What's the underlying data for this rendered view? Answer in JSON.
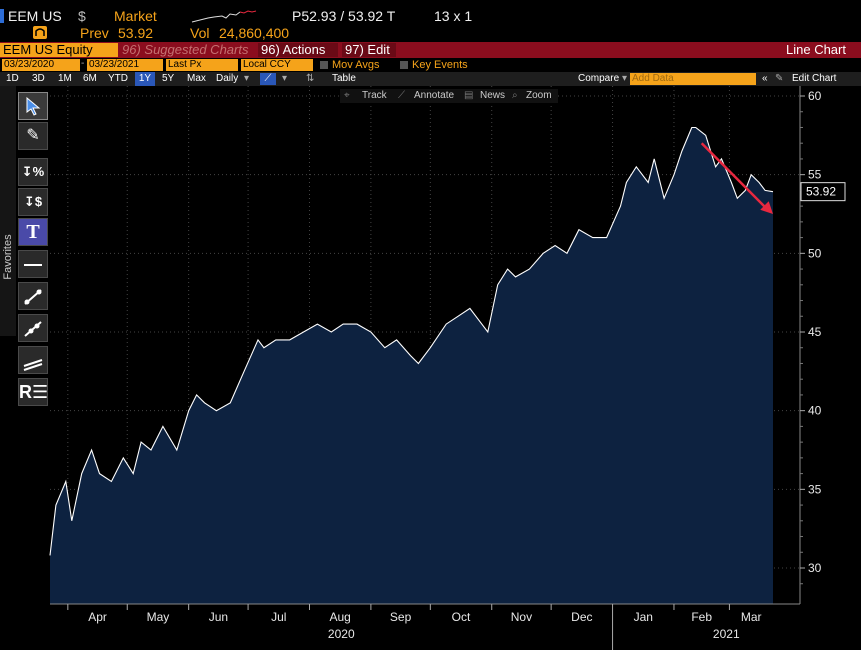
{
  "header": {
    "ticker": "EEM US",
    "currency_symbol": "$",
    "market_label": "Market",
    "price_label": "P52.93 / 53.92 T",
    "size_label": "13 x 1",
    "prev_label": "Prev",
    "prev_value": "53.92",
    "vol_label": "Vol",
    "vol_value": "24,860,400"
  },
  "function_bar": {
    "security": "EEM US Equity",
    "suggested": "96) Suggested Charts",
    "actions": "96) Actions",
    "edit": "97) Edit",
    "title": "Line Chart"
  },
  "inputs": {
    "start_date": "03/23/2020",
    "end_date": "03/23/2021",
    "field": "Last Px",
    "currency": "Local CCY",
    "mov_avgs": "Mov Avgs",
    "key_events": "Key Events"
  },
  "range_bar": {
    "ranges": [
      "1D",
      "3D",
      "1M",
      "6M",
      "YTD",
      "1Y",
      "5Y",
      "Max"
    ],
    "active_range": "1Y",
    "frequency": "Daily",
    "table": "Table",
    "compare": "Compare",
    "add_data_placeholder": "Add Data",
    "edit_chart": "Edit Chart"
  },
  "chart_tools": [
    "Track",
    "Annotate",
    "News",
    "Zoom"
  ],
  "sidebar": {
    "favorites": "Favorites"
  },
  "colors": {
    "area_fill": "#0d2240",
    "line": "#ffffff",
    "accent": "#f5a31a",
    "arrow": "#e8283f",
    "red_bar": "#8b0d1e"
  },
  "chart_data": {
    "type": "area",
    "ylim": [
      28,
      61
    ],
    "yticks": [
      30,
      35,
      40,
      45,
      50,
      55,
      60
    ],
    "last_value": "53.92",
    "x_month_labels": [
      "Apr",
      "May",
      "Jun",
      "Jul",
      "Aug",
      "Sep",
      "Oct",
      "Nov",
      "Dec",
      "Jan",
      "Feb",
      "Mar"
    ],
    "x_year_labels": [
      "2020",
      "2021"
    ],
    "trend_arrow": {
      "from": [
        "2021-02-15",
        57.0
      ],
      "to": [
        "2021-03-23",
        52.5
      ]
    },
    "series": [
      {
        "x": [
          "2020-03-23",
          "2020-03-26",
          "2020-03-31",
          "2020-04-03",
          "2020-04-08",
          "2020-04-13",
          "2020-04-17",
          "2020-04-23",
          "2020-04-29",
          "2020-05-04",
          "2020-05-08",
          "2020-05-13",
          "2020-05-19",
          "2020-05-26",
          "2020-06-01",
          "2020-06-05",
          "2020-06-09",
          "2020-06-15",
          "2020-06-22",
          "2020-06-29",
          "2020-07-06",
          "2020-07-09",
          "2020-07-15",
          "2020-07-22",
          "2020-07-29",
          "2020-08-05",
          "2020-08-12",
          "2020-08-18",
          "2020-08-25",
          "2020-09-01",
          "2020-09-08",
          "2020-09-14",
          "2020-09-21",
          "2020-09-25",
          "2020-10-01",
          "2020-10-09",
          "2020-10-15",
          "2020-10-21",
          "2020-10-27",
          "2020-10-30",
          "2020-11-04",
          "2020-11-09",
          "2020-11-13",
          "2020-11-20",
          "2020-11-27",
          "2020-12-03",
          "2020-12-09",
          "2020-12-15",
          "2020-12-22",
          "2020-12-29",
          "2021-01-05",
          "2021-01-08",
          "2021-01-13",
          "2021-01-19",
          "2021-01-22",
          "2021-01-27",
          "2021-02-01",
          "2021-02-05",
          "2021-02-10",
          "2021-02-12",
          "2021-02-17",
          "2021-02-22",
          "2021-02-25",
          "2021-03-02",
          "2021-03-05",
          "2021-03-09",
          "2021-03-12",
          "2021-03-16",
          "2021-03-19",
          "2021-03-23"
        ],
        "y": [
          30.8,
          34.0,
          35.5,
          33.0,
          36.0,
          37.5,
          36.0,
          35.5,
          37.0,
          36.0,
          38.0,
          37.5,
          39.0,
          37.5,
          40.0,
          41.0,
          40.5,
          40.0,
          40.5,
          42.5,
          44.5,
          44.0,
          44.5,
          44.5,
          45.0,
          45.5,
          45.0,
          45.5,
          45.5,
          45.0,
          44.0,
          44.5,
          43.5,
          43.0,
          44.0,
          45.5,
          46.0,
          46.5,
          45.5,
          45.0,
          48.0,
          49.0,
          48.5,
          49.0,
          50.0,
          50.5,
          50.0,
          51.5,
          51.0,
          51.0,
          53.0,
          54.5,
          55.5,
          54.5,
          56.0,
          53.5,
          55.0,
          56.5,
          58.0,
          58.0,
          57.5,
          55.5,
          56.0,
          54.5,
          53.5,
          54.0,
          55.0,
          54.5,
          54.0,
          53.92
        ]
      }
    ]
  }
}
